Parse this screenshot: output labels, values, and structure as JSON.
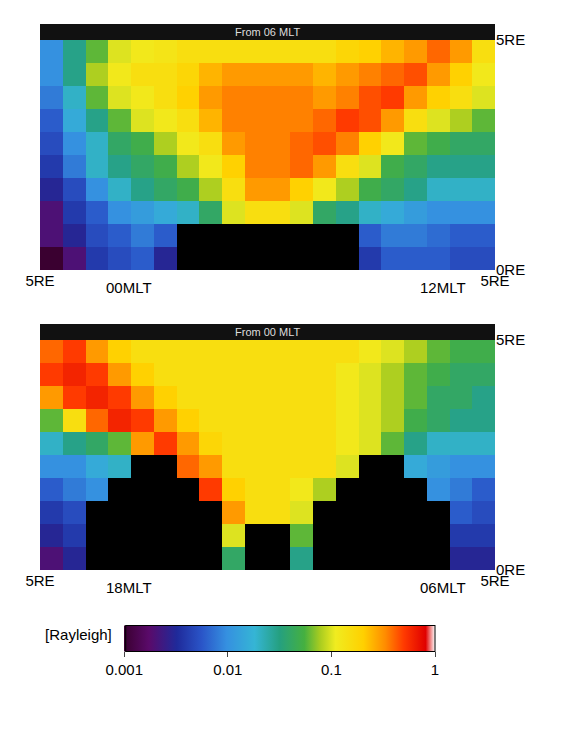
{
  "chart_data": [
    {
      "type": "heatmap",
      "title": "From 06 MLT",
      "annotations": [
        "00MLT",
        "12MLT"
      ],
      "x": [
        -4.75,
        -4.25,
        -3.75,
        -3.25,
        -2.75,
        -2.25,
        -1.75,
        -1.25,
        -0.75,
        -0.25,
        0.25,
        0.75,
        1.25,
        1.75,
        2.25,
        2.75,
        3.25,
        3.75,
        4.25,
        4.75
      ],
      "y": [
        0.25,
        0.75,
        1.25,
        1.75,
        2.25,
        2.75,
        3.25,
        3.75,
        4.25,
        4.75
      ],
      "z": [
        [
          0.001,
          0.002,
          0.004,
          0.005,
          0.006,
          0.003,
          null,
          null,
          null,
          null,
          null,
          null,
          null,
          null,
          0.004,
          0.006,
          0.006,
          0.006,
          0.005,
          0.005
        ],
        [
          0.002,
          0.003,
          0.005,
          0.006,
          0.008,
          0.006,
          null,
          null,
          null,
          null,
          null,
          null,
          null,
          null,
          0.006,
          0.008,
          0.008,
          0.007,
          0.006,
          0.006
        ],
        [
          0.002,
          0.004,
          0.006,
          0.01,
          0.012,
          0.015,
          0.02,
          0.04,
          0.1,
          0.15,
          0.15,
          0.1,
          0.04,
          0.03,
          0.02,
          0.015,
          0.012,
          0.01,
          0.01,
          0.01
        ],
        [
          0.003,
          0.005,
          0.01,
          0.02,
          0.03,
          0.04,
          0.05,
          0.08,
          0.15,
          0.3,
          0.3,
          0.2,
          0.12,
          0.08,
          0.05,
          0.04,
          0.03,
          0.02,
          0.02,
          0.02
        ],
        [
          0.004,
          0.008,
          0.02,
          0.03,
          0.04,
          0.05,
          0.08,
          0.12,
          0.2,
          0.35,
          0.35,
          0.4,
          0.3,
          0.15,
          0.1,
          0.05,
          0.04,
          0.03,
          0.03,
          0.03
        ],
        [
          0.005,
          0.01,
          0.02,
          0.04,
          0.05,
          0.08,
          0.12,
          0.15,
          0.3,
          0.35,
          0.35,
          0.4,
          0.45,
          0.35,
          0.2,
          0.12,
          0.06,
          0.05,
          0.04,
          0.04
        ],
        [
          0.006,
          0.015,
          0.03,
          0.06,
          0.1,
          0.12,
          0.15,
          0.25,
          0.35,
          0.35,
          0.35,
          0.35,
          0.4,
          0.5,
          0.45,
          0.3,
          0.15,
          0.1,
          0.08,
          0.06
        ],
        [
          0.008,
          0.02,
          0.06,
          0.1,
          0.12,
          0.15,
          0.2,
          0.3,
          0.35,
          0.35,
          0.35,
          0.35,
          0.3,
          0.35,
          0.45,
          0.5,
          0.3,
          0.2,
          0.15,
          0.1
        ],
        [
          0.01,
          0.03,
          0.08,
          0.12,
          0.15,
          0.15,
          0.18,
          0.25,
          0.3,
          0.3,
          0.3,
          0.3,
          0.25,
          0.3,
          0.35,
          0.4,
          0.45,
          0.3,
          0.2,
          0.12
        ],
        [
          0.01,
          0.03,
          0.06,
          0.1,
          0.12,
          0.13,
          0.15,
          0.15,
          0.15,
          0.15,
          0.15,
          0.15,
          0.15,
          0.18,
          0.2,
          0.25,
          0.3,
          0.4,
          0.3,
          0.15
        ]
      ],
      "xlim": [
        -5,
        5
      ],
      "ylim": [
        0,
        5
      ],
      "xticks": [
        {
          "value": -5,
          "label": "5RE"
        },
        {
          "value": 5,
          "label": "5RE"
        }
      ],
      "yticks": [
        {
          "value": 0,
          "label": "0RE"
        },
        {
          "value": 5,
          "label": "5RE"
        }
      ],
      "log": true,
      "colorbar": {
        "range": [
          0.001,
          1
        ],
        "ticks": [
          0.001,
          0.01,
          0.1,
          1
        ],
        "title": "[Rayleigh]"
      }
    },
    {
      "type": "heatmap",
      "title": "From 00 MLT",
      "annotations": [
        "18MLT",
        "06MLT"
      ],
      "x": [
        -4.75,
        -4.25,
        -3.75,
        -3.25,
        -2.75,
        -2.25,
        -1.75,
        -1.25,
        -0.75,
        -0.25,
        0.25,
        0.75,
        1.25,
        1.75,
        2.25,
        2.75,
        3.25,
        3.75,
        4.25,
        4.75
      ],
      "y": [
        0.25,
        0.75,
        1.25,
        1.75,
        2.25,
        2.75,
        3.25,
        3.75,
        4.25,
        4.75
      ],
      "z": [
        [
          0.002,
          0.003,
          null,
          null,
          null,
          null,
          null,
          null,
          0.04,
          null,
          null,
          0.03,
          null,
          null,
          null,
          null,
          null,
          null,
          0.003,
          0.003
        ],
        [
          0.003,
          0.004,
          null,
          null,
          null,
          null,
          null,
          null,
          0.1,
          null,
          null,
          0.06,
          null,
          null,
          null,
          null,
          null,
          null,
          0.004,
          0.004
        ],
        [
          0.004,
          0.005,
          null,
          null,
          null,
          null,
          null,
          null,
          0.3,
          0.15,
          0.15,
          0.1,
          null,
          null,
          null,
          null,
          null,
          null,
          0.006,
          0.005
        ],
        [
          0.006,
          0.008,
          0.01,
          null,
          null,
          null,
          null,
          0.5,
          0.2,
          0.15,
          0.15,
          0.12,
          0.08,
          null,
          null,
          null,
          null,
          0.01,
          0.008,
          0.006
        ],
        [
          0.01,
          0.01,
          0.015,
          0.02,
          null,
          null,
          0.4,
          0.3,
          0.15,
          0.15,
          0.15,
          0.15,
          0.15,
          0.1,
          null,
          null,
          0.015,
          0.012,
          0.01,
          0.01
        ],
        [
          0.02,
          0.03,
          0.04,
          0.06,
          0.3,
          0.5,
          0.3,
          0.18,
          0.15,
          0.15,
          0.15,
          0.15,
          0.15,
          0.12,
          0.1,
          0.06,
          0.03,
          0.02,
          0.02,
          0.02
        ],
        [
          0.06,
          0.15,
          0.4,
          0.6,
          0.5,
          0.3,
          0.2,
          0.15,
          0.15,
          0.15,
          0.15,
          0.15,
          0.15,
          0.12,
          0.1,
          0.08,
          0.05,
          0.04,
          0.03,
          0.03
        ],
        [
          0.3,
          0.5,
          0.6,
          0.5,
          0.3,
          0.2,
          0.15,
          0.15,
          0.15,
          0.15,
          0.15,
          0.15,
          0.15,
          0.12,
          0.1,
          0.08,
          0.06,
          0.04,
          0.04,
          0.03
        ],
        [
          0.5,
          0.6,
          0.5,
          0.3,
          0.2,
          0.15,
          0.15,
          0.15,
          0.15,
          0.15,
          0.15,
          0.15,
          0.15,
          0.12,
          0.1,
          0.08,
          0.06,
          0.05,
          0.04,
          0.04
        ],
        [
          0.4,
          0.5,
          0.3,
          0.2,
          0.15,
          0.15,
          0.15,
          0.15,
          0.15,
          0.15,
          0.15,
          0.15,
          0.15,
          0.15,
          0.12,
          0.1,
          0.08,
          0.06,
          0.05,
          0.05
        ]
      ],
      "xlim": [
        -5,
        5
      ],
      "ylim": [
        0,
        5
      ],
      "xticks": [
        {
          "value": -5,
          "label": "5RE"
        },
        {
          "value": 5,
          "label": "5RE"
        }
      ],
      "yticks": [
        {
          "value": 0,
          "label": "0RE"
        },
        {
          "value": 5,
          "label": "5RE"
        }
      ],
      "log": true,
      "colorbar": {
        "range": [
          0.001,
          1
        ],
        "ticks": [
          0.001,
          0.01,
          0.1,
          1
        ],
        "title": "[Rayleigh]"
      }
    }
  ]
}
